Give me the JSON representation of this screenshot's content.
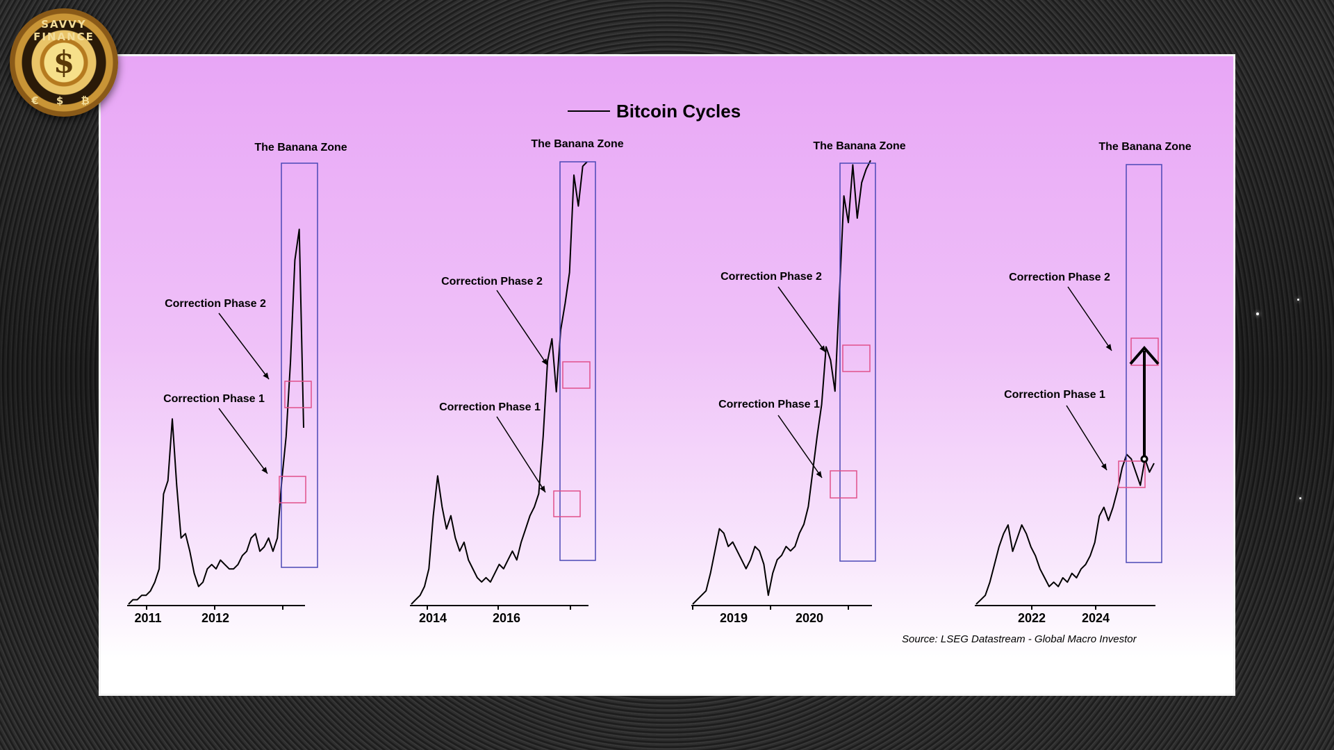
{
  "logo": {
    "brand": "SAVVY FINANCE",
    "symbol": "$",
    "currencies": "€ $ ₿"
  },
  "title": "Bitcoin Cycles",
  "source": "Source: LSEG Datastream - Global Macro Investor",
  "colors": {
    "line": "#000000",
    "zone_box": "#4a48b5",
    "correction_box": "#e0508a",
    "arrow": "#000000"
  },
  "chart_data": [
    {
      "type": "line",
      "panel": 1,
      "title": "Bitcoin Cycles",
      "xlabel": "",
      "ylabel": "",
      "tick_labels": [
        "2011",
        "2012"
      ],
      "zone_label": "The Banana Zone",
      "correction_labels": [
        "Correction Phase 2",
        "Correction Phase 1"
      ],
      "series": [
        {
          "values": [
            0.0,
            0.01,
            0.01,
            0.02,
            0.02,
            0.03,
            0.05,
            0.08,
            0.25,
            0.28,
            0.42,
            0.27,
            0.15,
            0.16,
            0.12,
            0.07,
            0.04,
            0.05,
            0.08,
            0.09,
            0.08,
            0.1,
            0.09,
            0.08,
            0.08,
            0.09,
            0.11,
            0.12,
            0.15,
            0.16,
            0.12,
            0.13,
            0.15,
            0.12,
            0.15,
            0.28,
            0.38,
            0.55,
            0.78,
            0.85,
            0.4
          ]
        }
      ]
    },
    {
      "type": "line",
      "panel": 2,
      "tick_labels": [
        "2014",
        "2016"
      ],
      "zone_label": "The Banana Zone",
      "correction_labels": [
        "Correction Phase 2",
        "Correction Phase 1"
      ],
      "series": [
        {
          "values": [
            0.0,
            0.01,
            0.02,
            0.04,
            0.08,
            0.2,
            0.29,
            0.22,
            0.17,
            0.2,
            0.15,
            0.12,
            0.14,
            0.1,
            0.08,
            0.06,
            0.05,
            0.06,
            0.05,
            0.07,
            0.09,
            0.08,
            0.1,
            0.12,
            0.1,
            0.14,
            0.17,
            0.2,
            0.22,
            0.25,
            0.38,
            0.55,
            0.6,
            0.48,
            0.62,
            0.68,
            0.75,
            0.97,
            0.9,
            0.99,
            1.0
          ]
        }
      ]
    },
    {
      "type": "line",
      "panel": 3,
      "tick_labels": [
        "2019",
        "2020"
      ],
      "zone_label": "The Banana Zone",
      "correction_labels": [
        "Correction Phase 2",
        "Correction Phase 1"
      ],
      "series": [
        {
          "values": [
            0.0,
            0.01,
            0.02,
            0.03,
            0.07,
            0.12,
            0.17,
            0.16,
            0.13,
            0.14,
            0.12,
            0.1,
            0.08,
            0.1,
            0.13,
            0.12,
            0.09,
            0.02,
            0.07,
            0.1,
            0.11,
            0.13,
            0.12,
            0.13,
            0.16,
            0.18,
            0.22,
            0.3,
            0.38,
            0.45,
            0.58,
            0.55,
            0.48,
            0.7,
            0.92,
            0.86,
            0.99,
            0.87,
            0.95,
            0.98,
            1.0
          ]
        }
      ]
    },
    {
      "type": "line",
      "panel": 4,
      "tick_labels": [
        "2022",
        "2024"
      ],
      "zone_label": "The Banana Zone",
      "correction_labels": [
        "Correction Phase 2",
        "Correction Phase 1"
      ],
      "series": [
        {
          "values": [
            0.0,
            0.01,
            0.02,
            0.05,
            0.09,
            0.13,
            0.16,
            0.18,
            0.12,
            0.15,
            0.18,
            0.16,
            0.13,
            0.11,
            0.08,
            0.06,
            0.04,
            0.05,
            0.04,
            0.06,
            0.05,
            0.07,
            0.06,
            0.08,
            0.09,
            0.11,
            0.14,
            0.2,
            0.22,
            0.19,
            0.22,
            0.26,
            0.31,
            0.34,
            0.33,
            0.3,
            0.27,
            0.33,
            0.3,
            0.32
          ]
        }
      ]
    }
  ]
}
